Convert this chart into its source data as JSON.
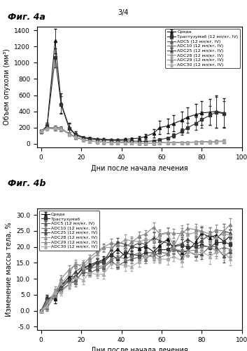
{
  "page_label": "3/4",
  "fig4a_title": "Фиг. 4a",
  "fig4b_title": "Фиг. 4b",
  "xlabel": "Дни после начала лечения",
  "ylabel4a": "Объем опухоли (мм³)",
  "ylabel4b": "Изменение массы тела, %",
  "legend4a": [
    "Среда",
    "Трастузумаб (12 мл/кг, IV)",
    "ADC5 (12 мл/кг, IV)",
    "ADC10 (12 мл/кг, IV)",
    "ADC25 (12 мл/кг, IV)",
    "ADC28 (12 мл/кг, IV)",
    "ADC29 (12 мл/кг, IV)",
    "ADC30 (12 мл/кг, IV)"
  ],
  "legend4b": [
    "Среда",
    "Трастузумаб",
    "ADC5 (12 мл/кг, IV)",
    "ADC10 (12 мл/кг, IV)",
    "ADC25 (12 мл/кг, IV)",
    "ADC28 (12 мл/кг, IV)",
    "ADC29 (12 мл/кг, IV)",
    "ADC30 (12 мл/кг, IV)"
  ],
  "colors": [
    "#111111",
    "#333333",
    "#555555",
    "#777777",
    "#444444",
    "#999999",
    "#888888",
    "#aaaaaa"
  ],
  "markers": [
    "^",
    "s",
    "^",
    "^",
    "^",
    "^",
    "^",
    "^"
  ]
}
